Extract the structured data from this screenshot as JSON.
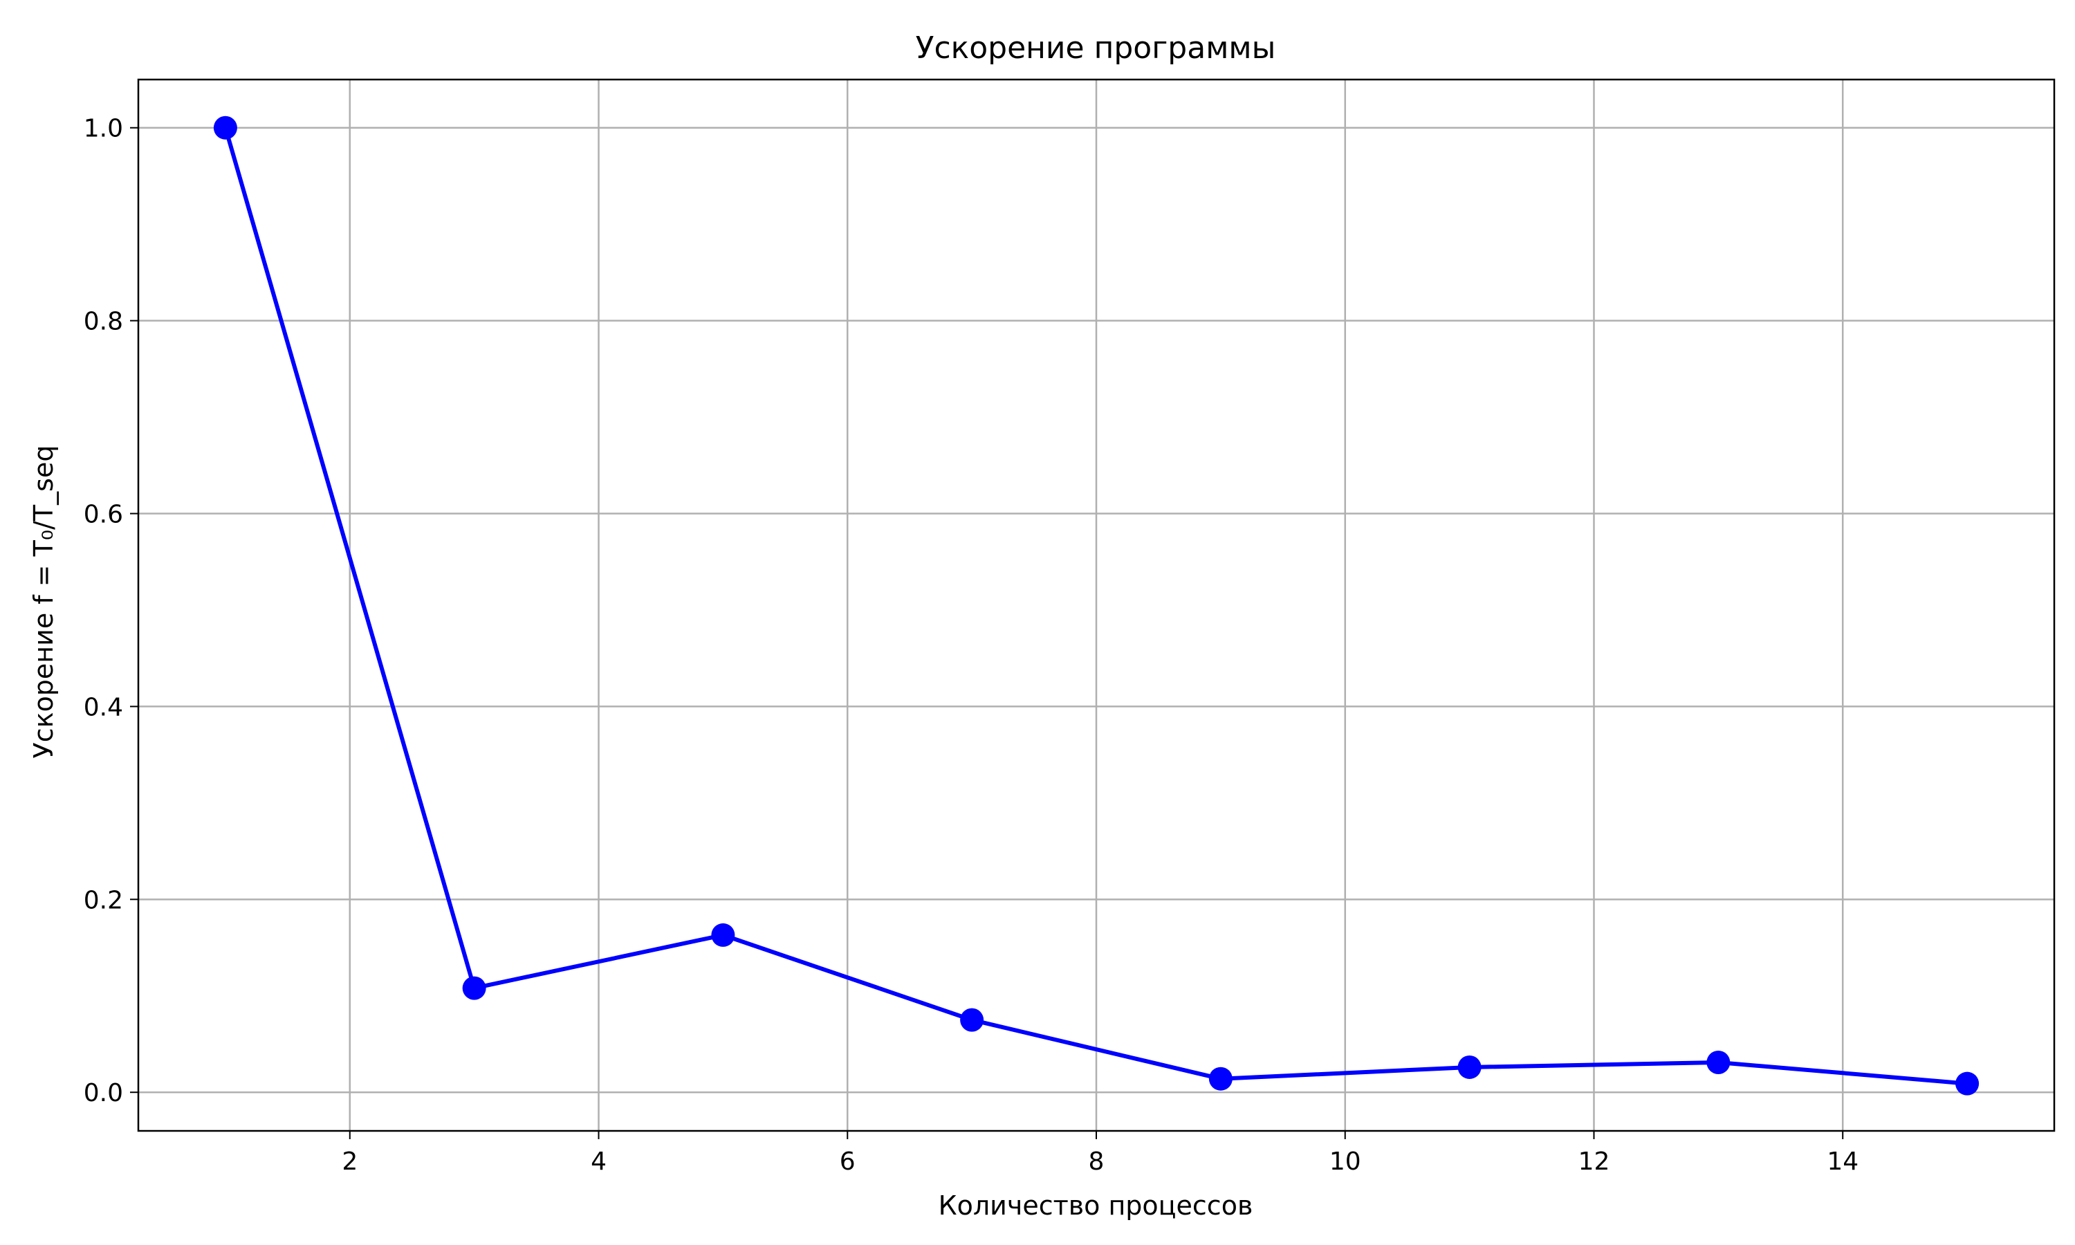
{
  "chart_data": {
    "type": "line",
    "title": "Ускорение программы",
    "xlabel": "Количество процессов",
    "ylabel": "Ускорение f = T₀/T_seq",
    "xlim": [
      0.3,
      15.7
    ],
    "ylim": [
      -0.04,
      1.05
    ],
    "xticks": [
      2,
      4,
      6,
      8,
      10,
      12,
      14
    ],
    "xtick_labels": [
      "2",
      "4",
      "6",
      "8",
      "10",
      "12",
      "14"
    ],
    "yticks": [
      0.0,
      0.2,
      0.4,
      0.6,
      0.8,
      1.0
    ],
    "ytick_labels": [
      "0.0",
      "0.2",
      "0.4",
      "0.6",
      "0.8",
      "1.0"
    ],
    "grid": true,
    "series": [
      {
        "color": "#0000ff",
        "marker": "circle",
        "x": [
          1,
          3,
          5,
          7,
          9,
          11,
          13,
          15
        ],
        "y": [
          1.0,
          0.108,
          0.163,
          0.075,
          0.014,
          0.026,
          0.031,
          0.009
        ]
      }
    ]
  }
}
